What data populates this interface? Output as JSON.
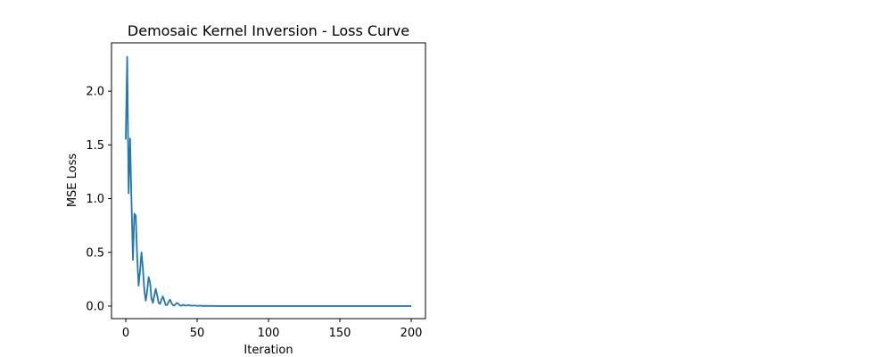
{
  "chart_data": {
    "type": "line",
    "title": "Demosaic Kernel Inversion - Loss Curve",
    "xlabel": "Iteration",
    "ylabel": "MSE Loss",
    "xlim": [
      -10,
      210
    ],
    "ylim": [
      -0.1167,
      2.45
    ],
    "xticks": [
      0,
      50,
      100,
      150,
      200
    ],
    "yticks": [
      0.0,
      0.5,
      1.0,
      1.5,
      2.0
    ],
    "xtick_labels": [
      "0",
      "50",
      "100",
      "150",
      "200"
    ],
    "ytick_labels": [
      "0.0",
      "0.5",
      "1.0",
      "1.5",
      "2.0"
    ],
    "grid": false,
    "line_color": "#1f77b4",
    "series": [
      {
        "x": [
          0,
          1,
          2,
          3,
          4,
          5,
          6,
          7,
          8,
          9,
          10,
          11,
          12,
          13,
          14,
          15,
          16,
          17,
          18,
          19,
          20,
          21,
          22,
          23,
          24,
          25,
          26,
          27,
          28,
          29,
          30,
          31,
          32,
          33,
          34,
          35,
          36,
          37,
          38,
          39,
          40,
          42,
          44,
          46,
          48,
          50,
          52,
          54,
          56,
          58,
          60,
          65,
          70,
          80,
          100,
          120,
          150,
          200
        ],
        "y": [
          1.55,
          2.32,
          1.05,
          1.56,
          0.98,
          0.43,
          0.86,
          0.84,
          0.45,
          0.19,
          0.33,
          0.5,
          0.35,
          0.15,
          0.05,
          0.14,
          0.27,
          0.22,
          0.07,
          0.03,
          0.1,
          0.16,
          0.1,
          0.03,
          0.02,
          0.06,
          0.09,
          0.05,
          0.01,
          0.01,
          0.04,
          0.06,
          0.03,
          0.01,
          0.005,
          0.02,
          0.03,
          0.02,
          0.005,
          0.003,
          0.012,
          0.004,
          0.01,
          0.003,
          0.006,
          0.002,
          0.004,
          0.001,
          0.002,
          0.001,
          0.001,
          0.0,
          0.0,
          0.0,
          0.0,
          0.0,
          0.0,
          0.0
        ]
      }
    ]
  }
}
